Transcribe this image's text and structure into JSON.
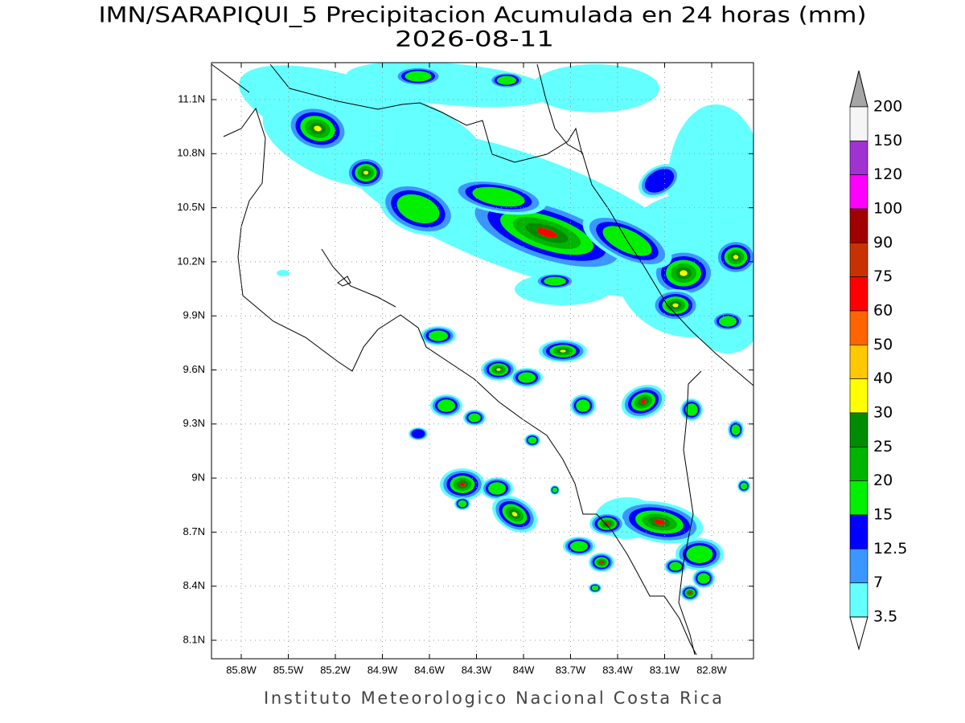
{
  "header": {
    "title": "IMN/SARAPIQUI_5 Precipitacion Acumulada en 24 horas (mm)",
    "date": "2026-08-11"
  },
  "map": {
    "lat_labels": [
      "11.1N",
      "10.8N",
      "10.5N",
      "10.2N",
      "9.9N",
      "9.6N",
      "9.3N",
      "9N",
      "8.7N",
      "8.4N",
      "8.1N"
    ],
    "lon_labels": [
      "85.8W",
      "85.5W",
      "85.2W",
      "84.9W",
      "84.6W",
      "84.3W",
      "84W",
      "83.7W",
      "83.4W",
      "83.1W",
      "82.8W"
    ]
  },
  "colorbar": {
    "levels": [
      200,
      150,
      120,
      100,
      90,
      75,
      60,
      50,
      40,
      30,
      25,
      20,
      15,
      12.5,
      7,
      3.5
    ],
    "colors": [
      "#a5a5a5",
      "#f5f5f5",
      "#a032d2",
      "#ff00ff",
      "#a00000",
      "#c83200",
      "#ff0000",
      "#ff6400",
      "#ffc800",
      "#ffff00",
      "#008c00",
      "#00b400",
      "#00f000",
      "#0000ff",
      "#3c96ff",
      "#64ffff",
      "#ffffff"
    ]
  },
  "footer": "Instituto Meteorologico Nacional Costa Rica"
}
